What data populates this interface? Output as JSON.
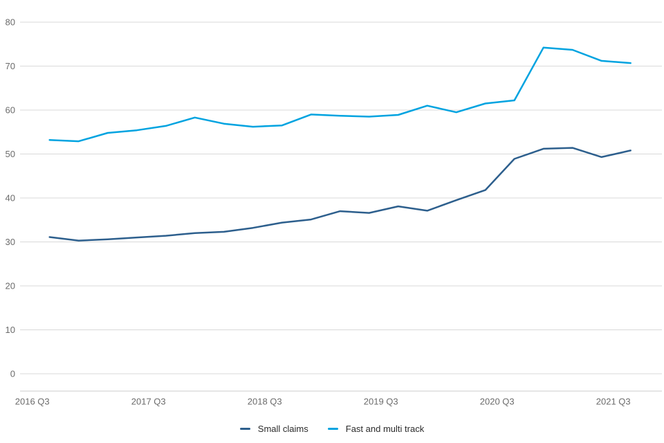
{
  "chart_data": {
    "type": "line",
    "categories": [
      "2016 Q3",
      "2016 Q4",
      "2017 Q1",
      "2017 Q2",
      "2017 Q3",
      "2017 Q4",
      "2018 Q1",
      "2018 Q2",
      "2018 Q3",
      "2018 Q4",
      "2019 Q1",
      "2019 Q2",
      "2019 Q3",
      "2019 Q4",
      "2020 Q1",
      "2020 Q2",
      "2020 Q3",
      "2020 Q4",
      "2021 Q1",
      "2021 Q2",
      "2021 Q3"
    ],
    "series": [
      {
        "name": "Small claims",
        "color": "#2d5f8d",
        "values": [
          31.1,
          30.3,
          30.6,
          31.0,
          31.4,
          32.0,
          32.3,
          33.2,
          34.4,
          35.1,
          37.0,
          36.6,
          38.1,
          37.1,
          39.5,
          41.8,
          48.9,
          51.2,
          51.4,
          49.3,
          50.8
        ]
      },
      {
        "name": "Fast and multi track",
        "color": "#00a3e0",
        "values": [
          53.2,
          52.9,
          54.8,
          55.4,
          56.4,
          58.3,
          56.9,
          56.2,
          56.5,
          59.0,
          58.7,
          58.5,
          58.9,
          61.0,
          59.5,
          61.5,
          62.2,
          74.2,
          73.7,
          71.2,
          70.7
        ]
      }
    ],
    "title": "",
    "xlabel": "",
    "ylabel": "",
    "x_tick_labels": [
      "2016 Q3",
      "2017 Q3",
      "2018 Q3",
      "2019 Q3",
      "2020 Q3",
      "2021 Q3"
    ],
    "x_tick_indices": [
      0,
      4,
      8,
      12,
      16,
      20
    ],
    "y_ticks": [
      0,
      10,
      20,
      30,
      40,
      50,
      60,
      70,
      80
    ],
    "ylim": [
      0,
      80
    ],
    "grid": "horizontal",
    "legend_position": "bottom-center",
    "colors": {
      "gridline": "#d9d9d9",
      "axis_line": "#cccccc",
      "tick_label": "#6b6b6b",
      "legend_text": "#2b2b2b",
      "background": "#ffffff"
    }
  }
}
